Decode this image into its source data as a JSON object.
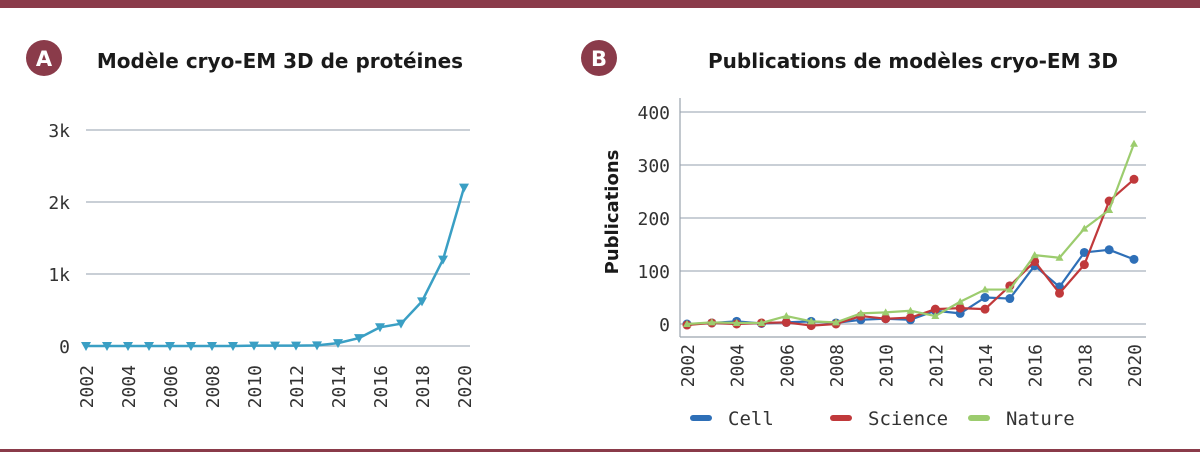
{
  "panels": {
    "a": {
      "badge": "A",
      "chart_data": {
        "type": "line",
        "title": "Modèle cryo-EM 3D de protéines",
        "xlabel": "",
        "ylabel": "",
        "x": [
          2002,
          2003,
          2004,
          2005,
          2006,
          2007,
          2008,
          2009,
          2010,
          2011,
          2012,
          2013,
          2014,
          2015,
          2016,
          2017,
          2018,
          2019,
          2020
        ],
        "y_ticks": [
          "0",
          "1k",
          "2k",
          "3k"
        ],
        "y_tick_values": [
          0,
          1000,
          2000,
          3000
        ],
        "ylim": [
          0,
          3000
        ],
        "x_ticks": [
          "2002",
          "2004",
          "2006",
          "2008",
          "2010",
          "2012",
          "2014",
          "2016",
          "2018",
          "2020"
        ],
        "grid": true,
        "series": [
          {
            "values": [
              0,
              0,
              0,
              0,
              0,
              0,
              0,
              0,
              5,
              5,
              5,
              8,
              40,
              110,
              260,
              310,
              620,
              1200,
              2200
            ],
            "color": "#3a9fc4",
            "marker": "triangle-down"
          }
        ]
      }
    },
    "b": {
      "badge": "B",
      "chart_data": {
        "type": "line",
        "title": "Publications de modèles cryo-EM 3D",
        "xlabel": "",
        "ylabel": "Publications",
        "x": [
          2002,
          2003,
          2004,
          2005,
          2006,
          2007,
          2008,
          2009,
          2010,
          2011,
          2012,
          2013,
          2014,
          2015,
          2016,
          2017,
          2018,
          2019,
          2020
        ],
        "y_ticks": [
          "0",
          "100",
          "200",
          "300",
          "400"
        ],
        "y_tick_values": [
          0,
          100,
          200,
          300,
          400
        ],
        "ylim": [
          0,
          400
        ],
        "x_ticks": [
          "2002",
          "2004",
          "2006",
          "2008",
          "2010",
          "2012",
          "2014",
          "2016",
          "2018",
          "2020"
        ],
        "grid": true,
        "legend_position": "bottom",
        "series": [
          {
            "name": "Cell",
            "color": "#2e6fb7",
            "marker": "circle",
            "values": [
              0,
              2,
              5,
              1,
              3,
              5,
              2,
              8,
              10,
              8,
              25,
              20,
              50,
              48,
              110,
              70,
              135,
              140,
              122
            ]
          },
          {
            "name": "Science",
            "color": "#c0393b",
            "marker": "circle",
            "values": [
              -2,
              2,
              0,
              2,
              3,
              -3,
              0,
              15,
              10,
              12,
              28,
              30,
              28,
              72,
              118,
              58,
              112,
              232,
              273
            ]
          },
          {
            "name": "Nature",
            "color": "#9ccc6e",
            "marker": "triangle-up",
            "values": [
              0,
              3,
              2,
              2,
              15,
              5,
              3,
              20,
              22,
              25,
              15,
              42,
              65,
              65,
              130,
              125,
              180,
              215,
              340
            ]
          }
        ]
      }
    }
  }
}
